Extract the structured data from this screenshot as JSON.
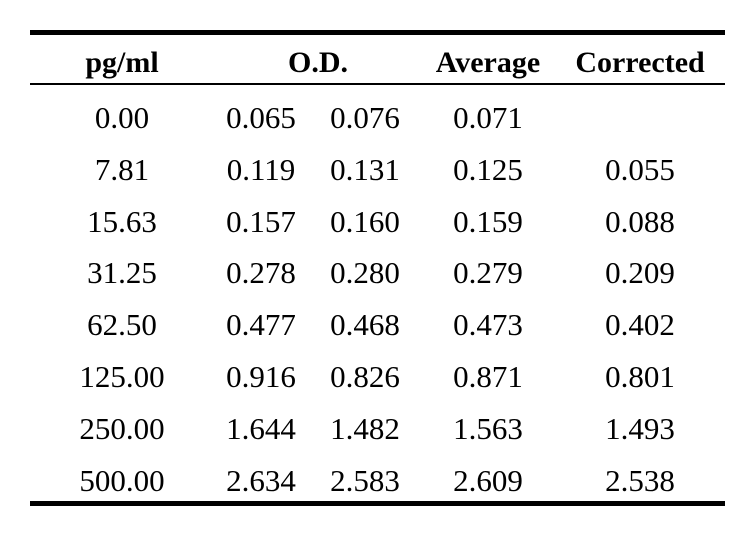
{
  "table": {
    "headers": {
      "pg_ml": "pg/ml",
      "od": "O.D.",
      "average": "Average",
      "corrected": "Corrected"
    },
    "rows": [
      {
        "pg_ml": "0.00",
        "od1": "0.065",
        "od2": "0.076",
        "average": "0.071",
        "corrected": ""
      },
      {
        "pg_ml": "7.81",
        "od1": "0.119",
        "od2": "0.131",
        "average": "0.125",
        "corrected": "0.055"
      },
      {
        "pg_ml": "15.63",
        "od1": "0.157",
        "od2": "0.160",
        "average": "0.159",
        "corrected": "0.088"
      },
      {
        "pg_ml": "31.25",
        "od1": "0.278",
        "od2": "0.280",
        "average": "0.279",
        "corrected": "0.209"
      },
      {
        "pg_ml": "62.50",
        "od1": "0.477",
        "od2": "0.468",
        "average": "0.473",
        "corrected": "0.402"
      },
      {
        "pg_ml": "125.00",
        "od1": "0.916",
        "od2": "0.826",
        "average": "0.871",
        "corrected": "0.801"
      },
      {
        "pg_ml": "250.00",
        "od1": "1.644",
        "od2": "1.482",
        "average": "1.563",
        "corrected": "1.493"
      },
      {
        "pg_ml": "500.00",
        "od1": "2.634",
        "od2": "2.583",
        "average": "2.609",
        "corrected": "2.538"
      }
    ]
  }
}
